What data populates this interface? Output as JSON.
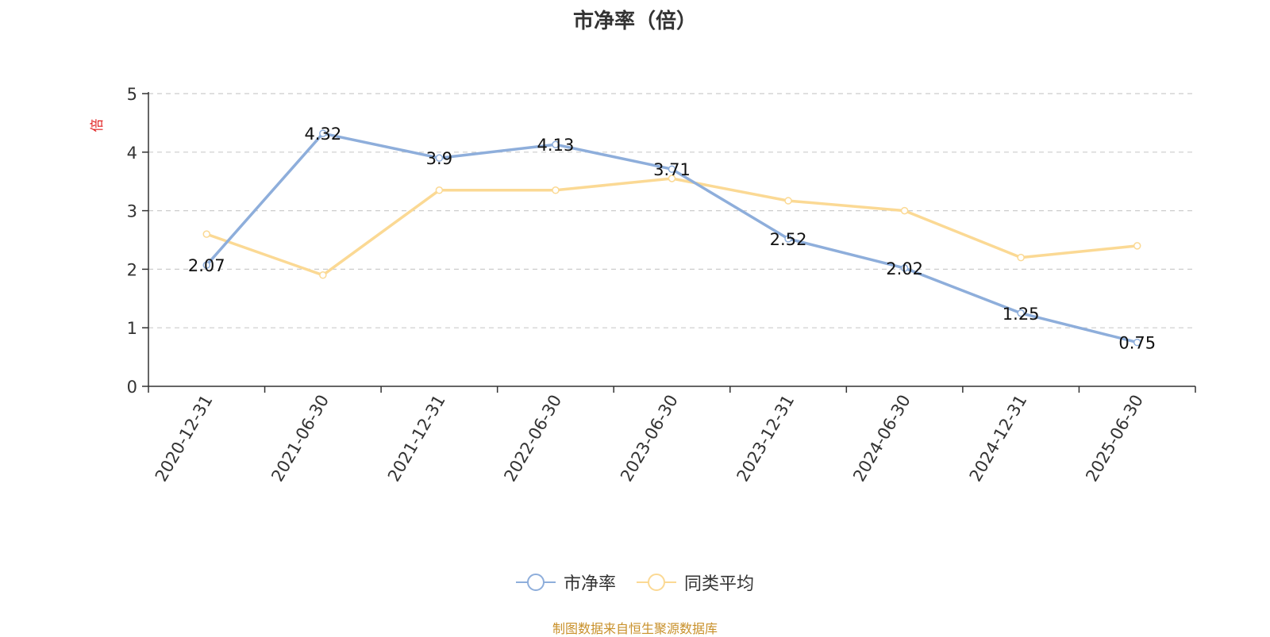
{
  "chart_data": {
    "type": "line",
    "title": "市净率（倍）",
    "ylabel": "倍",
    "xlabel": "",
    "ylim": [
      0,
      5
    ],
    "yticks": [
      0,
      1,
      2,
      3,
      4,
      5
    ],
    "grid": true,
    "legend_position": "bottom",
    "categories": [
      "2020-12-31",
      "2021-06-30",
      "2021-12-31",
      "2022-06-30",
      "2023-06-30",
      "2023-12-31",
      "2024-06-30",
      "2024-12-31",
      "2025-06-30"
    ],
    "series": [
      {
        "name": "市净率",
        "color": "#8eaedb",
        "values": [
          2.07,
          4.32,
          3.9,
          4.13,
          3.71,
          2.52,
          2.02,
          1.25,
          0.75
        ],
        "show_labels": true
      },
      {
        "name": "同类平均",
        "color": "#fbd994",
        "values": [
          2.6,
          1.9,
          3.35,
          3.35,
          3.55,
          3.17,
          3.0,
          2.2,
          2.4
        ],
        "show_labels": false
      }
    ],
    "source_note": "制图数据来自恒生聚源数据库"
  }
}
